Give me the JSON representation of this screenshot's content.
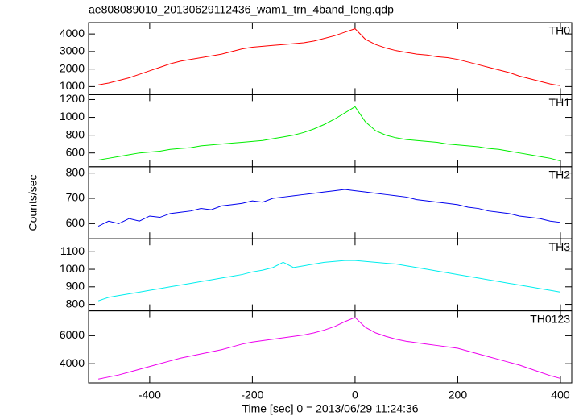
{
  "chart_data": [
    {
      "type": "line",
      "title": "ae808089010_20130629112436_wam1_trn_4band_long.qdp",
      "x": [
        -500,
        -480,
        -460,
        -440,
        -420,
        -400,
        -380,
        -360,
        -340,
        -320,
        -300,
        -280,
        -260,
        -240,
        -220,
        -200,
        -180,
        -160,
        -140,
        -120,
        -100,
        -80,
        -60,
        -40,
        -20,
        0,
        20,
        40,
        60,
        80,
        100,
        120,
        140,
        160,
        180,
        200,
        220,
        240,
        260,
        280,
        300,
        320,
        340,
        360,
        380,
        400
      ],
      "series": [
        {
          "name": "TH0",
          "color": "#ff0000",
          "values": [
            1100,
            1200,
            1350,
            1500,
            1700,
            1900,
            2100,
            2300,
            2450,
            2550,
            2650,
            2750,
            2850,
            3000,
            3150,
            3250,
            3300,
            3350,
            3400,
            3450,
            3500,
            3600,
            3750,
            3900,
            4100,
            4300,
            3700,
            3400,
            3200,
            3050,
            2950,
            2850,
            2800,
            2700,
            2650,
            2550,
            2400,
            2250,
            2100,
            1950,
            1800,
            1600,
            1450,
            1300,
            1150,
            1050
          ]
        }
      ],
      "xlim": [
        -519,
        422
      ],
      "xticks": [
        -400,
        -200,
        0,
        200,
        400
      ],
      "ylim": [
        540,
        4650
      ],
      "yticks": [
        1000,
        2000,
        3000,
        4000
      ]
    },
    {
      "type": "line",
      "x": [
        -500,
        -480,
        -460,
        -440,
        -420,
        -400,
        -380,
        -360,
        -340,
        -320,
        -300,
        -280,
        -260,
        -240,
        -220,
        -200,
        -180,
        -160,
        -140,
        -120,
        -100,
        -80,
        -60,
        -40,
        -20,
        0,
        20,
        40,
        60,
        80,
        100,
        120,
        140,
        160,
        180,
        200,
        220,
        240,
        260,
        280,
        300,
        320,
        340,
        360,
        380,
        400
      ],
      "series": [
        {
          "name": "TH1",
          "color": "#00ee00",
          "values": [
            520,
            540,
            560,
            580,
            600,
            610,
            620,
            640,
            650,
            660,
            680,
            690,
            700,
            710,
            720,
            730,
            740,
            760,
            780,
            800,
            830,
            870,
            920,
            980,
            1050,
            1120,
            950,
            850,
            800,
            770,
            750,
            740,
            730,
            720,
            700,
            690,
            680,
            670,
            650,
            640,
            620,
            600,
            580,
            560,
            540,
            510
          ]
        }
      ],
      "xlim": [
        -519,
        422
      ],
      "xticks": [
        -400,
        -200,
        0,
        200,
        400
      ],
      "ylim": [
        445,
        1255
      ],
      "yticks": [
        600,
        800,
        1000,
        1200
      ]
    },
    {
      "type": "line",
      "ylabel": "Counts/sec",
      "x": [
        -500,
        -480,
        -460,
        -440,
        -420,
        -400,
        -380,
        -360,
        -340,
        -320,
        -300,
        -280,
        -260,
        -240,
        -220,
        -200,
        -180,
        -160,
        -140,
        -120,
        -100,
        -80,
        -60,
        -40,
        -20,
        0,
        20,
        40,
        60,
        80,
        100,
        120,
        140,
        160,
        180,
        200,
        220,
        240,
        260,
        280,
        300,
        320,
        340,
        360,
        380,
        400
      ],
      "series": [
        {
          "name": "TH2",
          "color": "#0000ee",
          "values": [
            590,
            610,
            600,
            620,
            610,
            630,
            625,
            640,
            645,
            650,
            660,
            655,
            670,
            675,
            680,
            690,
            685,
            700,
            705,
            710,
            715,
            720,
            725,
            730,
            735,
            730,
            725,
            720,
            715,
            710,
            705,
            695,
            690,
            685,
            680,
            675,
            665,
            660,
            650,
            645,
            640,
            630,
            625,
            620,
            610,
            605
          ]
        }
      ],
      "xlim": [
        -519,
        422
      ],
      "xticks": [
        -400,
        -200,
        0,
        200,
        400
      ],
      "ylim": [
        540,
        825
      ],
      "yticks": [
        600,
        700,
        800
      ]
    },
    {
      "type": "line",
      "x": [
        -500,
        -480,
        -460,
        -440,
        -420,
        -400,
        -380,
        -360,
        -340,
        -320,
        -300,
        -280,
        -260,
        -240,
        -220,
        -200,
        -180,
        -160,
        -140,
        -120,
        -100,
        -80,
        -60,
        -40,
        -20,
        0,
        20,
        40,
        60,
        80,
        100,
        120,
        140,
        160,
        180,
        200,
        220,
        240,
        260,
        280,
        300,
        320,
        340,
        360,
        380,
        400
      ],
      "series": [
        {
          "name": "TH3",
          "color": "#00eeee",
          "values": [
            820,
            840,
            850,
            860,
            870,
            880,
            890,
            900,
            910,
            920,
            930,
            940,
            950,
            960,
            970,
            985,
            995,
            1010,
            1040,
            1010,
            1020,
            1030,
            1040,
            1045,
            1050,
            1050,
            1045,
            1040,
            1035,
            1030,
            1020,
            1010,
            1000,
            990,
            980,
            970,
            960,
            950,
            940,
            930,
            920,
            910,
            900,
            890,
            880,
            870
          ]
        }
      ],
      "xlim": [
        -519,
        422
      ],
      "xticks": [
        -400,
        -200,
        0,
        200,
        400
      ],
      "ylim": [
        763,
        1174
      ],
      "yticks": [
        800,
        900,
        1000,
        1100
      ]
    },
    {
      "type": "line",
      "xlabel": "Time [sec] 0 = 2013/06/29 11:24:36",
      "x": [
        -500,
        -480,
        -460,
        -440,
        -420,
        -400,
        -380,
        -360,
        -340,
        -320,
        -300,
        -280,
        -260,
        -240,
        -220,
        -200,
        -180,
        -160,
        -140,
        -120,
        -100,
        -80,
        -60,
        -40,
        -20,
        0,
        20,
        40,
        60,
        80,
        100,
        120,
        140,
        160,
        180,
        200,
        220,
        240,
        260,
        280,
        300,
        320,
        340,
        360,
        380,
        400
      ],
      "series": [
        {
          "name": "TH0123",
          "color": "#ee00ee",
          "values": [
            2900,
            3050,
            3200,
            3400,
            3600,
            3800,
            4000,
            4200,
            4400,
            4550,
            4700,
            4850,
            5000,
            5200,
            5400,
            5550,
            5650,
            5750,
            5850,
            5950,
            6050,
            6200,
            6400,
            6650,
            7000,
            7300,
            6600,
            6200,
            5950,
            5750,
            5600,
            5500,
            5400,
            5300,
            5200,
            5100,
            4900,
            4700,
            4500,
            4300,
            4100,
            3900,
            3650,
            3400,
            3150,
            2950
          ]
        }
      ],
      "xlim": [
        -519,
        422
      ],
      "xticks": [
        -400,
        -200,
        0,
        200,
        400
      ],
      "ylim": [
        2629,
        7771
      ],
      "yticks": [
        4000,
        6000
      ]
    }
  ]
}
